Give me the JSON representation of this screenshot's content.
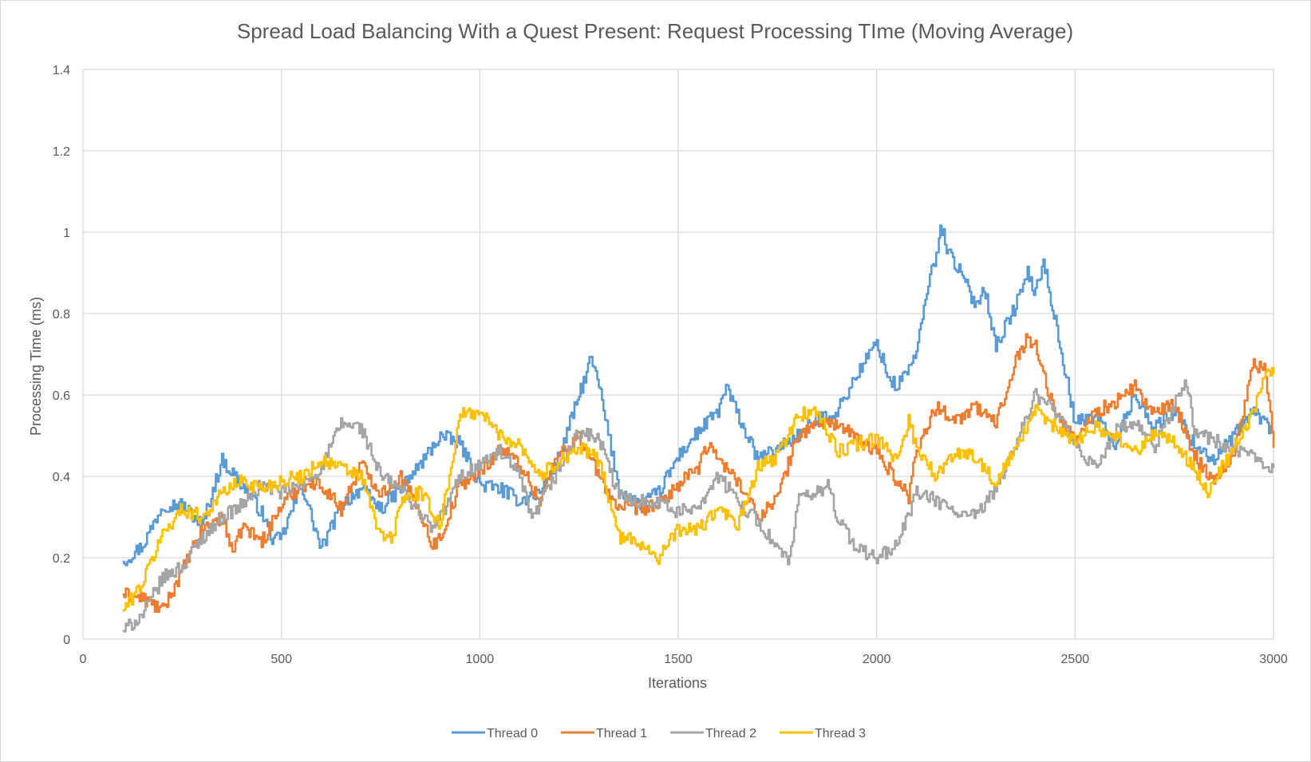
{
  "chart_data": {
    "type": "line",
    "title": "Spread Load Balancing With a Quest Present: Request Processing TIme (Moving Average)",
    "xlabel": "Iterations",
    "ylabel": "Processing Time (ms)",
    "xlim": [
      0,
      3000
    ],
    "ylim": [
      0,
      1.4
    ],
    "x_ticks": [
      "0",
      "500",
      "1000",
      "1500",
      "2000",
      "2500",
      "3000"
    ],
    "y_ticks": [
      "0",
      "0.2",
      "0.4",
      "0.6",
      "0.8",
      "1",
      "1.2",
      "1.4"
    ],
    "grid": true,
    "legend_position": "bottom",
    "series": [
      {
        "name": "Thread 0",
        "color": "#5b9bd5",
        "points": [
          [
            100,
            0.19
          ],
          [
            150,
            0.23
          ],
          [
            200,
            0.33
          ],
          [
            250,
            0.33
          ],
          [
            300,
            0.28
          ],
          [
            350,
            0.44
          ],
          [
            400,
            0.38
          ],
          [
            450,
            0.31
          ],
          [
            480,
            0.24
          ],
          [
            500,
            0.25
          ],
          [
            550,
            0.38
          ],
          [
            600,
            0.22
          ],
          [
            650,
            0.33
          ],
          [
            700,
            0.37
          ],
          [
            750,
            0.32
          ],
          [
            800,
            0.37
          ],
          [
            850,
            0.43
          ],
          [
            900,
            0.5
          ],
          [
            950,
            0.48
          ],
          [
            1000,
            0.38
          ],
          [
            1050,
            0.37
          ],
          [
            1100,
            0.34
          ],
          [
            1150,
            0.36
          ],
          [
            1200,
            0.45
          ],
          [
            1250,
            0.6
          ],
          [
            1280,
            0.69
          ],
          [
            1300,
            0.62
          ],
          [
            1350,
            0.37
          ],
          [
            1400,
            0.33
          ],
          [
            1450,
            0.36
          ],
          [
            1500,
            0.45
          ],
          [
            1550,
            0.51
          ],
          [
            1600,
            0.56
          ],
          [
            1620,
            0.62
          ],
          [
            1650,
            0.55
          ],
          [
            1700,
            0.44
          ],
          [
            1750,
            0.47
          ],
          [
            1800,
            0.5
          ],
          [
            1850,
            0.54
          ],
          [
            1900,
            0.56
          ],
          [
            1950,
            0.65
          ],
          [
            2000,
            0.73
          ],
          [
            2030,
            0.64
          ],
          [
            2050,
            0.62
          ],
          [
            2100,
            0.7
          ],
          [
            2130,
            0.88
          ],
          [
            2150,
            0.94
          ],
          [
            2160,
            1.02
          ],
          [
            2180,
            0.95
          ],
          [
            2200,
            0.92
          ],
          [
            2250,
            0.82
          ],
          [
            2270,
            0.87
          ],
          [
            2300,
            0.72
          ],
          [
            2350,
            0.82
          ],
          [
            2380,
            0.9
          ],
          [
            2400,
            0.85
          ],
          [
            2420,
            0.93
          ],
          [
            2450,
            0.78
          ],
          [
            2500,
            0.53
          ],
          [
            2550,
            0.55
          ],
          [
            2600,
            0.48
          ],
          [
            2650,
            0.6
          ],
          [
            2700,
            0.52
          ],
          [
            2750,
            0.56
          ],
          [
            2800,
            0.48
          ],
          [
            2850,
            0.44
          ],
          [
            2900,
            0.5
          ],
          [
            2950,
            0.56
          ],
          [
            3000,
            0.51
          ]
        ]
      },
      {
        "name": "Thread 1",
        "color": "#ed7d31",
        "points": [
          [
            100,
            0.11
          ],
          [
            150,
            0.1
          ],
          [
            200,
            0.07
          ],
          [
            250,
            0.17
          ],
          [
            300,
            0.27
          ],
          [
            350,
            0.3
          ],
          [
            380,
            0.21
          ],
          [
            400,
            0.28
          ],
          [
            450,
            0.24
          ],
          [
            500,
            0.33
          ],
          [
            550,
            0.38
          ],
          [
            600,
            0.38
          ],
          [
            650,
            0.32
          ],
          [
            700,
            0.43
          ],
          [
            750,
            0.36
          ],
          [
            800,
            0.4
          ],
          [
            850,
            0.31
          ],
          [
            880,
            0.23
          ],
          [
            900,
            0.25
          ],
          [
            950,
            0.38
          ],
          [
            1000,
            0.41
          ],
          [
            1050,
            0.47
          ],
          [
            1100,
            0.43
          ],
          [
            1150,
            0.34
          ],
          [
            1200,
            0.46
          ],
          [
            1250,
            0.5
          ],
          [
            1300,
            0.4
          ],
          [
            1350,
            0.32
          ],
          [
            1400,
            0.32
          ],
          [
            1450,
            0.33
          ],
          [
            1500,
            0.38
          ],
          [
            1550,
            0.42
          ],
          [
            1580,
            0.49
          ],
          [
            1600,
            0.44
          ],
          [
            1650,
            0.39
          ],
          [
            1700,
            0.3
          ],
          [
            1750,
            0.35
          ],
          [
            1800,
            0.5
          ],
          [
            1850,
            0.53
          ],
          [
            1900,
            0.53
          ],
          [
            1950,
            0.49
          ],
          [
            2000,
            0.46
          ],
          [
            2050,
            0.39
          ],
          [
            2080,
            0.35
          ],
          [
            2100,
            0.47
          ],
          [
            2150,
            0.57
          ],
          [
            2200,
            0.54
          ],
          [
            2250,
            0.57
          ],
          [
            2300,
            0.53
          ],
          [
            2350,
            0.69
          ],
          [
            2380,
            0.74
          ],
          [
            2400,
            0.72
          ],
          [
            2450,
            0.55
          ],
          [
            2500,
            0.49
          ],
          [
            2550,
            0.56
          ],
          [
            2600,
            0.58
          ],
          [
            2650,
            0.62
          ],
          [
            2700,
            0.55
          ],
          [
            2750,
            0.58
          ],
          [
            2800,
            0.45
          ],
          [
            2850,
            0.39
          ],
          [
            2900,
            0.46
          ],
          [
            2950,
            0.68
          ],
          [
            2980,
            0.66
          ],
          [
            3000,
            0.47
          ]
        ]
      },
      {
        "name": "Thread 2",
        "color": "#a5a5a5",
        "points": [
          [
            100,
            0.02
          ],
          [
            150,
            0.06
          ],
          [
            200,
            0.15
          ],
          [
            250,
            0.18
          ],
          [
            300,
            0.25
          ],
          [
            350,
            0.3
          ],
          [
            400,
            0.33
          ],
          [
            450,
            0.38
          ],
          [
            500,
            0.36
          ],
          [
            550,
            0.38
          ],
          [
            600,
            0.42
          ],
          [
            650,
            0.53
          ],
          [
            700,
            0.52
          ],
          [
            750,
            0.4
          ],
          [
            800,
            0.37
          ],
          [
            850,
            0.31
          ],
          [
            880,
            0.27
          ],
          [
            900,
            0.3
          ],
          [
            950,
            0.4
          ],
          [
            1000,
            0.43
          ],
          [
            1050,
            0.46
          ],
          [
            1100,
            0.4
          ],
          [
            1130,
            0.29
          ],
          [
            1150,
            0.33
          ],
          [
            1200,
            0.42
          ],
          [
            1250,
            0.51
          ],
          [
            1300,
            0.49
          ],
          [
            1350,
            0.35
          ],
          [
            1400,
            0.34
          ],
          [
            1450,
            0.34
          ],
          [
            1500,
            0.31
          ],
          [
            1550,
            0.33
          ],
          [
            1600,
            0.4
          ],
          [
            1650,
            0.34
          ],
          [
            1700,
            0.29
          ],
          [
            1750,
            0.22
          ],
          [
            1780,
            0.19
          ],
          [
            1800,
            0.34
          ],
          [
            1850,
            0.36
          ],
          [
            1880,
            0.38
          ],
          [
            1900,
            0.3
          ],
          [
            1950,
            0.22
          ],
          [
            2000,
            0.2
          ],
          [
            2050,
            0.23
          ],
          [
            2100,
            0.36
          ],
          [
            2150,
            0.34
          ],
          [
            2200,
            0.31
          ],
          [
            2250,
            0.3
          ],
          [
            2300,
            0.37
          ],
          [
            2350,
            0.48
          ],
          [
            2400,
            0.6
          ],
          [
            2450,
            0.56
          ],
          [
            2500,
            0.47
          ],
          [
            2550,
            0.42
          ],
          [
            2600,
            0.51
          ],
          [
            2650,
            0.53
          ],
          [
            2700,
            0.47
          ],
          [
            2750,
            0.58
          ],
          [
            2780,
            0.63
          ],
          [
            2800,
            0.51
          ],
          [
            2850,
            0.49
          ],
          [
            2900,
            0.46
          ],
          [
            2950,
            0.45
          ],
          [
            3000,
            0.42
          ]
        ]
      },
      {
        "name": "Thread 3",
        "color": "#ffc000",
        "points": [
          [
            100,
            0.07
          ],
          [
            150,
            0.14
          ],
          [
            200,
            0.26
          ],
          [
            250,
            0.32
          ],
          [
            300,
            0.3
          ],
          [
            350,
            0.36
          ],
          [
            400,
            0.39
          ],
          [
            450,
            0.37
          ],
          [
            500,
            0.39
          ],
          [
            550,
            0.4
          ],
          [
            600,
            0.44
          ],
          [
            650,
            0.42
          ],
          [
            700,
            0.4
          ],
          [
            750,
            0.25
          ],
          [
            780,
            0.25
          ],
          [
            800,
            0.34
          ],
          [
            850,
            0.36
          ],
          [
            900,
            0.28
          ],
          [
            950,
            0.55
          ],
          [
            1000,
            0.56
          ],
          [
            1050,
            0.5
          ],
          [
            1100,
            0.48
          ],
          [
            1150,
            0.4
          ],
          [
            1200,
            0.44
          ],
          [
            1250,
            0.47
          ],
          [
            1300,
            0.44
          ],
          [
            1350,
            0.25
          ],
          [
            1400,
            0.24
          ],
          [
            1450,
            0.2
          ],
          [
            1500,
            0.27
          ],
          [
            1550,
            0.27
          ],
          [
            1600,
            0.32
          ],
          [
            1650,
            0.28
          ],
          [
            1700,
            0.42
          ],
          [
            1750,
            0.45
          ],
          [
            1800,
            0.55
          ],
          [
            1850,
            0.56
          ],
          [
            1900,
            0.46
          ],
          [
            1950,
            0.48
          ],
          [
            2000,
            0.49
          ],
          [
            2050,
            0.44
          ],
          [
            2080,
            0.54
          ],
          [
            2100,
            0.47
          ],
          [
            2150,
            0.4
          ],
          [
            2200,
            0.46
          ],
          [
            2250,
            0.45
          ],
          [
            2300,
            0.38
          ],
          [
            2350,
            0.47
          ],
          [
            2400,
            0.56
          ],
          [
            2450,
            0.52
          ],
          [
            2500,
            0.49
          ],
          [
            2550,
            0.52
          ],
          [
            2600,
            0.5
          ],
          [
            2650,
            0.46
          ],
          [
            2700,
            0.51
          ],
          [
            2750,
            0.48
          ],
          [
            2800,
            0.42
          ],
          [
            2830,
            0.36
          ],
          [
            2850,
            0.39
          ],
          [
            2900,
            0.47
          ],
          [
            2950,
            0.56
          ],
          [
            2980,
            0.66
          ],
          [
            3000,
            0.65
          ]
        ]
      }
    ]
  }
}
